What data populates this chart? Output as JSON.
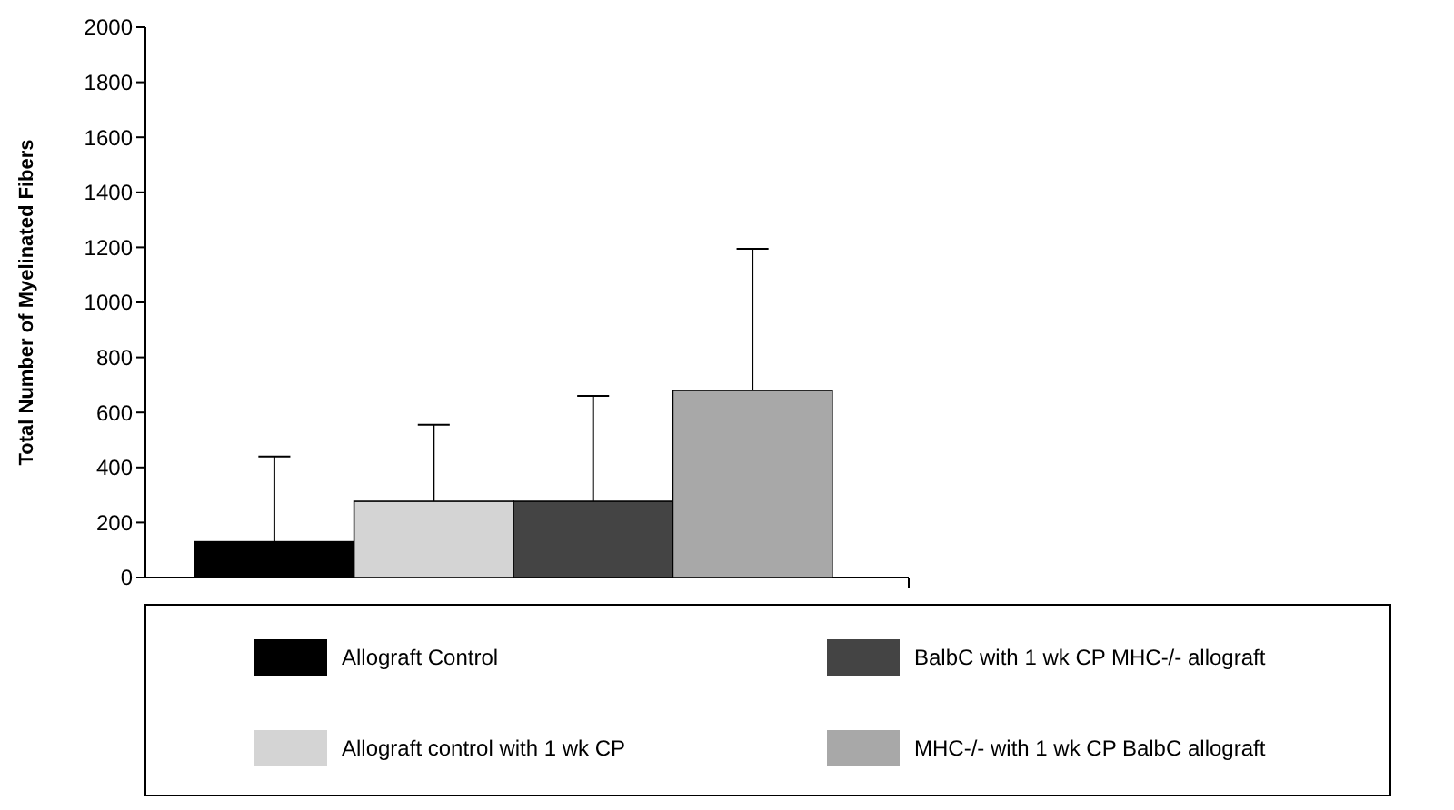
{
  "chart_data": {
    "type": "bar",
    "ylabel": "Total Number of Myelinated Fibers",
    "categories": [
      null
    ],
    "ylim": [
      0,
      2000
    ],
    "yticks": [
      0,
      200,
      400,
      600,
      800,
      1000,
      1200,
      1400,
      1600,
      1800,
      2000
    ],
    "grid": false,
    "legend": "bottom",
    "series": [
      {
        "name": "Allograft Control",
        "color": "#000000",
        "values": [
          130
        ],
        "errors": [
          [
            130,
            440
          ]
        ]
      },
      {
        "name": "Allograft control with 1 wk CP",
        "color": "#d4d4d4",
        "values": [
          277
        ],
        "errors": [
          [
            277,
            555
          ]
        ]
      },
      {
        "name": "BalbC with 1 wk CP MHC-/- allograft",
        "color": "#444444",
        "values": [
          277
        ],
        "errors": [
          [
            277,
            660
          ]
        ]
      },
      {
        "name": "MHC-/- with 1 wk CP BalbC allograft",
        "color": "#a8a8a8",
        "values": [
          680
        ],
        "errors": [
          [
            680,
            1195
          ]
        ]
      }
    ]
  }
}
